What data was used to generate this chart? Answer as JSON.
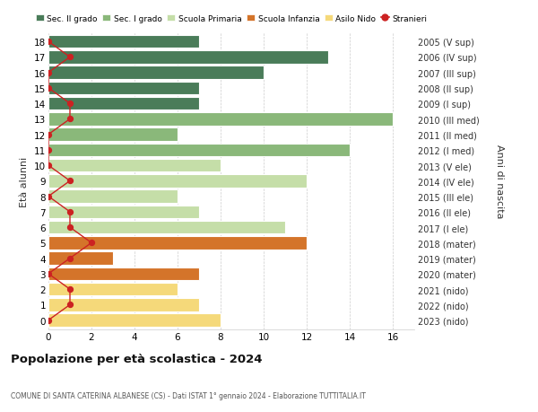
{
  "ages": [
    18,
    17,
    16,
    15,
    14,
    13,
    12,
    11,
    10,
    9,
    8,
    7,
    6,
    5,
    4,
    3,
    2,
    1,
    0
  ],
  "right_labels": [
    "2005 (V sup)",
    "2006 (IV sup)",
    "2007 (III sup)",
    "2008 (II sup)",
    "2009 (I sup)",
    "2010 (III med)",
    "2011 (II med)",
    "2012 (I med)",
    "2013 (V ele)",
    "2014 (IV ele)",
    "2015 (III ele)",
    "2016 (II ele)",
    "2017 (I ele)",
    "2018 (mater)",
    "2019 (mater)",
    "2020 (mater)",
    "2021 (nido)",
    "2022 (nido)",
    "2023 (nido)"
  ],
  "bar_values": [
    7,
    13,
    10,
    7,
    7,
    16,
    6,
    14,
    8,
    12,
    6,
    7,
    11,
    12,
    3,
    7,
    6,
    7,
    8
  ],
  "bar_colors": [
    "#4a7c59",
    "#4a7c59",
    "#4a7c59",
    "#4a7c59",
    "#4a7c59",
    "#8ab87a",
    "#8ab87a",
    "#8ab87a",
    "#c5dea8",
    "#c5dea8",
    "#c5dea8",
    "#c5dea8",
    "#c5dea8",
    "#d4742a",
    "#d4742a",
    "#d4742a",
    "#f5d97a",
    "#f5d97a",
    "#f5d97a"
  ],
  "stranieri_x": [
    0,
    1,
    0,
    0,
    1,
    1,
    0,
    0,
    0,
    1,
    0,
    1,
    1,
    2,
    1,
    0,
    1,
    1,
    0
  ],
  "legend_labels": [
    "Sec. II grado",
    "Sec. I grado",
    "Scuola Primaria",
    "Scuola Infanzia",
    "Asilo Nido",
    "Stranieri"
  ],
  "legend_colors": [
    "#4a7c59",
    "#8ab87a",
    "#c5dea8",
    "#d4742a",
    "#f5d97a",
    "#cc2222"
  ],
  "title": "Popolazione per età scolastica - 2024",
  "subtitle": "COMUNE DI SANTA CATERINA ALBANESE (CS) - Dati ISTAT 1° gennaio 2024 - Elaborazione TUTTITALIA.IT",
  "xlim": [
    0,
    17
  ],
  "xticks": [
    0,
    2,
    4,
    6,
    8,
    10,
    12,
    14,
    16
  ],
  "bg_color": "#ffffff"
}
